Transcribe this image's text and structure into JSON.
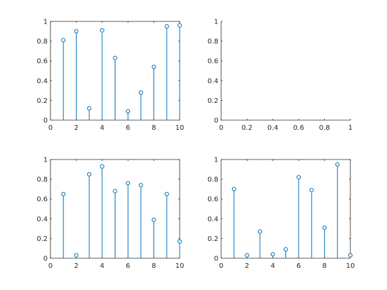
{
  "chart_data": [
    {
      "type": "stem",
      "x": [
        1,
        2,
        3,
        4,
        5,
        6,
        7,
        8,
        9,
        10
      ],
      "y": [
        0.81,
        0.9,
        0.12,
        0.91,
        0.63,
        0.09,
        0.28,
        0.54,
        0.95,
        0.96
      ],
      "xlim": [
        0,
        10
      ],
      "ylim": [
        0,
        1
      ],
      "xticks": [
        "0",
        "2",
        "4",
        "6",
        "8",
        "10"
      ],
      "yticks": [
        "0",
        "0.2",
        "0.4",
        "0.6",
        "0.8",
        "1"
      ],
      "box": "top-right",
      "color": "#0072BD"
    },
    {
      "type": "empty",
      "x": [],
      "y": [],
      "xlim": [
        0,
        1
      ],
      "ylim": [
        0,
        1
      ],
      "xticks": [
        "0",
        "0.2",
        "0.4",
        "0.6",
        "0.8",
        "1"
      ],
      "yticks": [
        "0",
        "0.2",
        "0.4",
        "0.6",
        "0.8",
        "1"
      ],
      "box": "none",
      "color": "#0072BD"
    },
    {
      "type": "stem",
      "x": [
        1,
        2,
        3,
        4,
        5,
        6,
        7,
        8,
        9,
        10
      ],
      "y": [
        0.65,
        0.03,
        0.85,
        0.93,
        0.68,
        0.76,
        0.74,
        0.39,
        0.65,
        0.17
      ],
      "xlim": [
        0,
        10
      ],
      "ylim": [
        0,
        1
      ],
      "xticks": [
        "0",
        "2",
        "4",
        "6",
        "8",
        "10"
      ],
      "yticks": [
        "0",
        "0.2",
        "0.4",
        "0.6",
        "0.8",
        "1"
      ],
      "box": "top-right",
      "color": "#0072BD"
    },
    {
      "type": "stem",
      "x": [
        1,
        2,
        3,
        4,
        5,
        6,
        7,
        8,
        9,
        10
      ],
      "y": [
        0.7,
        0.03,
        0.27,
        0.04,
        0.09,
        0.82,
        0.69,
        0.31,
        0.95,
        0.03
      ],
      "xlim": [
        0,
        10
      ],
      "ylim": [
        0,
        1
      ],
      "xticks": [
        "0",
        "2",
        "4",
        "6",
        "8",
        "10"
      ],
      "yticks": [
        "0",
        "0.2",
        "0.4",
        "0.6",
        "0.8",
        "1"
      ],
      "box": "top-right",
      "color": "#0072BD"
    }
  ]
}
